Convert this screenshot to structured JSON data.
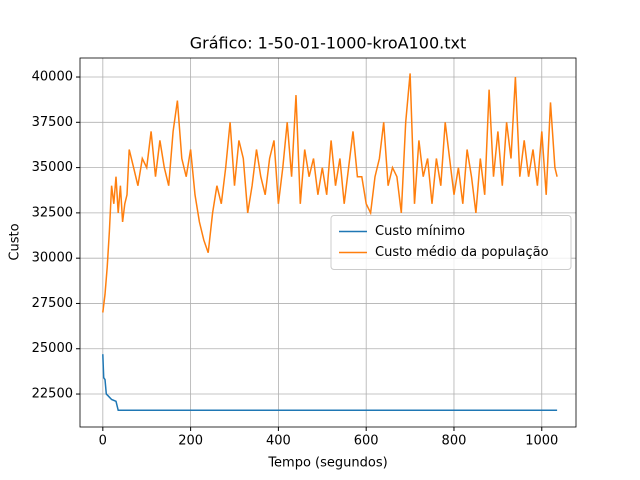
{
  "chart_data": {
    "type": "line",
    "title": "Gráfico: 1-50-01-1000-kroA100.txt",
    "x_label": "Tempo (segundos)",
    "y_label": "Custo",
    "xlim": [
      -52,
      1078
    ],
    "ylim": [
      20680,
      41050
    ],
    "xticks": [
      0,
      200,
      400,
      600,
      800,
      1000
    ],
    "yticks": [
      22500,
      25000,
      27500,
      30000,
      32500,
      35000,
      37500,
      40000
    ],
    "grid": true,
    "legend": "center right",
    "series": [
      {
        "name": "Custo mínimo",
        "color": "#1f77b4",
        "x": [
          0,
          2,
          5,
          8,
          12,
          20,
          30,
          35,
          1035
        ],
        "y": [
          24700,
          23400,
          23300,
          22500,
          22400,
          22200,
          22100,
          21600,
          21600
        ]
      },
      {
        "name": "Custo médio da população",
        "color": "#ff7f0e",
        "x": [
          0,
          5,
          10,
          15,
          20,
          25,
          30,
          35,
          40,
          45,
          50,
          55,
          60,
          70,
          80,
          90,
          100,
          110,
          120,
          130,
          140,
          150,
          160,
          170,
          180,
          190,
          200,
          210,
          220,
          230,
          240,
          250,
          260,
          270,
          280,
          290,
          300,
          310,
          320,
          330,
          340,
          350,
          360,
          370,
          380,
          390,
          400,
          410,
          420,
          430,
          440,
          450,
          460,
          470,
          480,
          490,
          500,
          510,
          520,
          530,
          540,
          550,
          560,
          570,
          580,
          590,
          600,
          610,
          620,
          630,
          640,
          650,
          660,
          670,
          680,
          690,
          700,
          710,
          720,
          730,
          740,
          750,
          760,
          770,
          780,
          790,
          800,
          810,
          820,
          830,
          840,
          850,
          860,
          870,
          880,
          890,
          900,
          910,
          920,
          930,
          940,
          950,
          960,
          970,
          980,
          990,
          1000,
          1010,
          1020,
          1030,
          1035
        ],
        "y": [
          27000,
          28000,
          29500,
          31500,
          34000,
          33000,
          34500,
          32500,
          34000,
          32000,
          33000,
          33500,
          36000,
          35000,
          34000,
          35500,
          35000,
          37000,
          34500,
          36500,
          35000,
          34000,
          37000,
          38700,
          35500,
          34500,
          36000,
          33500,
          32000,
          31000,
          30300,
          32500,
          34000,
          33000,
          35000,
          37500,
          34000,
          36500,
          35500,
          32500,
          34000,
          36000,
          34500,
          33500,
          35500,
          36500,
          33000,
          35000,
          37500,
          34500,
          39000,
          33000,
          36000,
          34500,
          35500,
          33500,
          35000,
          33500,
          36500,
          34000,
          35500,
          33000,
          35000,
          37000,
          34500,
          34500,
          33000,
          32500,
          34500,
          35500,
          37500,
          34000,
          35000,
          34500,
          32500,
          37500,
          40200,
          33000,
          36500,
          34500,
          35500,
          33000,
          35500,
          34000,
          37500,
          35500,
          33500,
          35000,
          33000,
          36000,
          34500,
          32500,
          35500,
          33500,
          39300,
          34500,
          37000,
          34000,
          37500,
          35500,
          40000,
          34500,
          36500,
          34500,
          36000,
          34000,
          37000,
          33500,
          38600,
          35000,
          34500
        ]
      }
    ]
  }
}
